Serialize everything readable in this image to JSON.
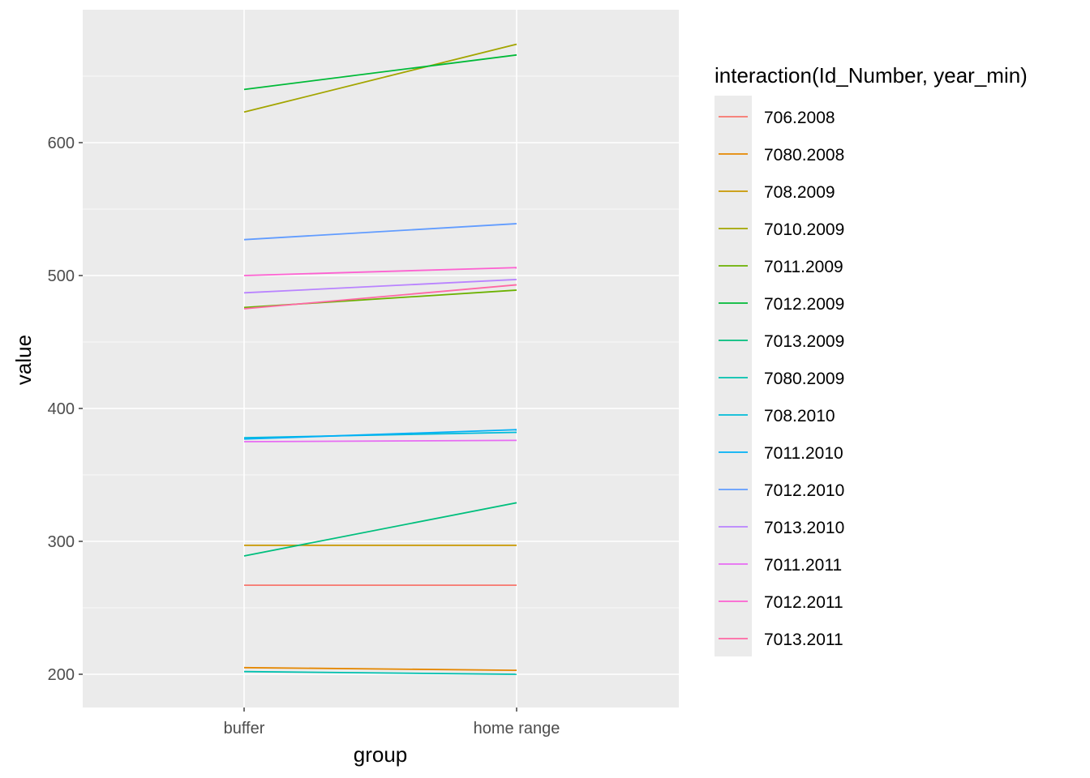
{
  "chart_data": {
    "type": "line",
    "xlabel": "group",
    "ylabel": "value",
    "categories": [
      "buffer",
      "home range"
    ],
    "ylim": [
      175,
      700
    ],
    "yticks": [
      200,
      300,
      400,
      500,
      600
    ],
    "grid": true,
    "legend": {
      "title": "interaction(Id_Number, year_min)",
      "placement": "right"
    },
    "series": [
      {
        "name": "706.2008",
        "color": "#F8766D",
        "values": [
          267,
          267
        ]
      },
      {
        "name": "7080.2008",
        "color": "#E58700",
        "values": [
          205,
          203
        ]
      },
      {
        "name": "708.2009",
        "color": "#C99800",
        "values": [
          297,
          297
        ]
      },
      {
        "name": "7010.2009",
        "color": "#A3A500",
        "values": [
          623,
          674
        ]
      },
      {
        "name": "7011.2009",
        "color": "#6BB100",
        "values": [
          476,
          489
        ]
      },
      {
        "name": "7012.2009",
        "color": "#00BA38",
        "values": [
          640,
          666
        ]
      },
      {
        "name": "7013.2009",
        "color": "#00BF7D",
        "values": [
          289,
          329
        ]
      },
      {
        "name": "7080.2009",
        "color": "#00C0AF",
        "values": [
          202,
          200
        ]
      },
      {
        "name": "708.2010",
        "color": "#00BCD8",
        "values": [
          378,
          382
        ]
      },
      {
        "name": "7011.2010",
        "color": "#00B0F6",
        "values": [
          377,
          384
        ]
      },
      {
        "name": "7012.2010",
        "color": "#619CFF",
        "values": [
          527,
          539
        ]
      },
      {
        "name": "7013.2010",
        "color": "#B983FF",
        "values": [
          487,
          497
        ]
      },
      {
        "name": "7011.2011",
        "color": "#E76BF3",
        "values": [
          375,
          376
        ]
      },
      {
        "name": "7012.2011",
        "color": "#FD61D1",
        "values": [
          500,
          506
        ]
      },
      {
        "name": "7013.2011",
        "color": "#FF67A4",
        "values": [
          475,
          493
        ]
      }
    ]
  }
}
